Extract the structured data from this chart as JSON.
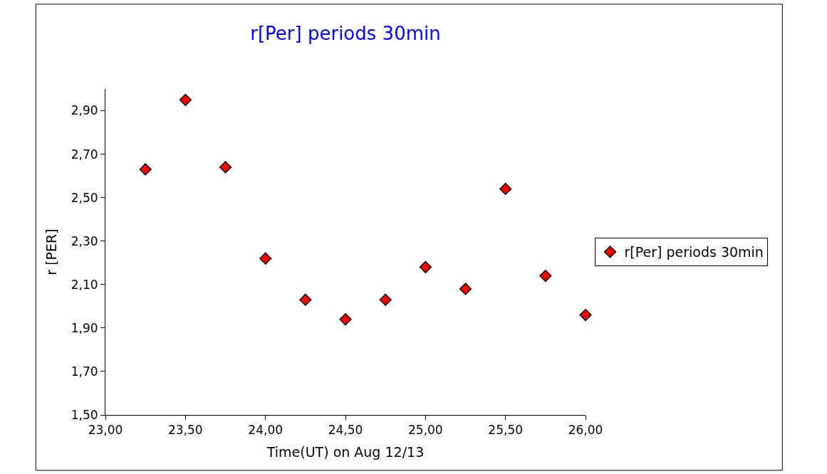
{
  "chart_data": {
    "type": "scatter",
    "title": "r[Per] periods 30min",
    "xlabel": "Time(UT) on Aug 12/13",
    "ylabel": "r [PER]",
    "x": [
      23.25,
      23.5,
      23.75,
      24.0,
      24.25,
      24.5,
      24.75,
      25.0,
      25.25,
      25.5,
      25.75,
      26.0
    ],
    "series": [
      {
        "name": "r[Per] periods 30min",
        "color": "#ff0000",
        "values": [
          2.63,
          2.95,
          2.64,
          2.22,
          2.03,
          1.94,
          2.03,
          2.18,
          2.08,
          2.54,
          2.14,
          1.96
        ]
      }
    ],
    "xlim": [
      23.0,
      26.0
    ],
    "xticks": [
      {
        "value": 23.0,
        "label": "23,00"
      },
      {
        "value": 23.5,
        "label": "23,50"
      },
      {
        "value": 24.0,
        "label": "24,00"
      },
      {
        "value": 24.5,
        "label": "24,50"
      },
      {
        "value": 25.0,
        "label": "25,00"
      },
      {
        "value": 25.5,
        "label": "25,50"
      },
      {
        "value": 26.0,
        "label": "26,00"
      }
    ],
    "ylim": [
      1.5,
      3.0
    ],
    "yticks": [
      {
        "value": 1.5,
        "label": "1,50"
      },
      {
        "value": 1.7,
        "label": "1,70"
      },
      {
        "value": 1.9,
        "label": "1,90"
      },
      {
        "value": 2.1,
        "label": "2,10"
      },
      {
        "value": 2.3,
        "label": "2,30"
      },
      {
        "value": 2.5,
        "label": "2,50"
      },
      {
        "value": 2.7,
        "label": "2,70"
      },
      {
        "value": 2.9,
        "label": "2,90"
      }
    ],
    "legend": "right",
    "marker": "diamond"
  }
}
